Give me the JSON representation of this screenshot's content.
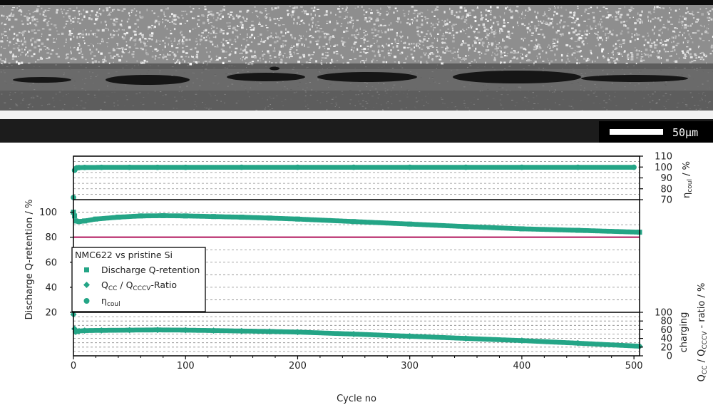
{
  "image_panel": {
    "scale_bar_label": "50µm",
    "colors": {
      "background": "#1b1b1b",
      "particles_light": "#d6d6d6",
      "separator": "#f2f2f2",
      "void": "#151515"
    }
  },
  "chart_data": {
    "type": "scatter",
    "x": {
      "label": "Cycle no",
      "lim": [
        0,
        505
      ],
      "ticks": [
        "0",
        "100",
        "200",
        "300",
        "400",
        "500"
      ]
    },
    "panels": [
      {
        "id": "coulombic_efficiency",
        "ylabel_main": "η",
        "ylabel_sub": "coul",
        "ylabel_tail": " / %",
        "ylim": [
          70,
          110
        ],
        "ticks": [
          "70",
          "80",
          "90",
          "100",
          "110"
        ],
        "axis_side": "right"
      },
      {
        "id": "discharge_retention",
        "ylabel": "Discharge Q-retention / %",
        "ylim": [
          20,
          110
        ],
        "ticks": [
          "20",
          "40",
          "60",
          "80",
          "100"
        ],
        "axis_side": "left",
        "reference_line": {
          "y": 80,
          "color": "#b0135a"
        }
      },
      {
        "id": "cc_cccv_ratio",
        "ylabel_line1": "charging",
        "ylabel_line2_prefix": "Q",
        "ylabel_line2_sub1": "CC",
        "ylabel_line2_mid": " / Q",
        "ylabel_line2_sub2": "CCCV",
        "ylabel_line2_tail": " - ratio / %",
        "ylim": [
          0,
          100
        ],
        "ticks": [
          "0",
          "20",
          "40",
          "60",
          "80",
          "100"
        ],
        "axis_side": "right"
      }
    ],
    "legend": {
      "title": "NMC622 vs pristine Si",
      "placement": "left-middle",
      "entries": [
        {
          "marker": "square",
          "label": "Discharge Q-retention"
        },
        {
          "marker": "diamond",
          "label_main": "Q",
          "sub1": "CC",
          "mid": " / Q",
          "sub2": "CCCV",
          "tail": "-Ratio"
        },
        {
          "marker": "circle",
          "label_main": "η",
          "sub1": "coul"
        }
      ]
    },
    "series": [
      {
        "name": "η_coul",
        "panel": "coulombic_efficiency",
        "marker": "circle",
        "color": "#24a586",
        "x": [
          0,
          1,
          2,
          3,
          5,
          10,
          25,
          50,
          75,
          100,
          150,
          200,
          250,
          300,
          350,
          400,
          450,
          500
        ],
        "values": [
          72,
          97,
          98.5,
          99.3,
          99.5,
          99.6,
          99.7,
          99.7,
          99.7,
          99.7,
          99.8,
          99.8,
          99.8,
          99.8,
          99.8,
          99.8,
          99.8,
          99.8
        ]
      },
      {
        "name": "Discharge Q-retention",
        "panel": "discharge_retention",
        "marker": "square",
        "color": "#24a586",
        "x": [
          0,
          1,
          2,
          5,
          10,
          20,
          40,
          60,
          80,
          100,
          125,
          150,
          175,
          200,
          250,
          300,
          350,
          400,
          450,
          505
        ],
        "values": [
          100,
          97,
          93,
          92.5,
          93,
          94.5,
          96,
          97,
          97.2,
          97,
          96.5,
          96,
          95.3,
          94.5,
          92.5,
          90.5,
          88.5,
          86.7,
          85.5,
          84
        ]
      },
      {
        "name": "Q_CC / Q_CCCV-Ratio",
        "panel": "cc_cccv_ratio",
        "marker": "diamond",
        "color": "#24a586",
        "x": [
          0,
          1,
          2,
          5,
          10,
          25,
          50,
          75,
          100,
          125,
          150,
          175,
          200,
          250,
          300,
          350,
          400,
          450,
          505
        ],
        "values": [
          95,
          62,
          55,
          57,
          58,
          58.5,
          59,
          59.5,
          59,
          58,
          57,
          56,
          54.5,
          50,
          45,
          40,
          35,
          29,
          22
        ]
      }
    ]
  }
}
